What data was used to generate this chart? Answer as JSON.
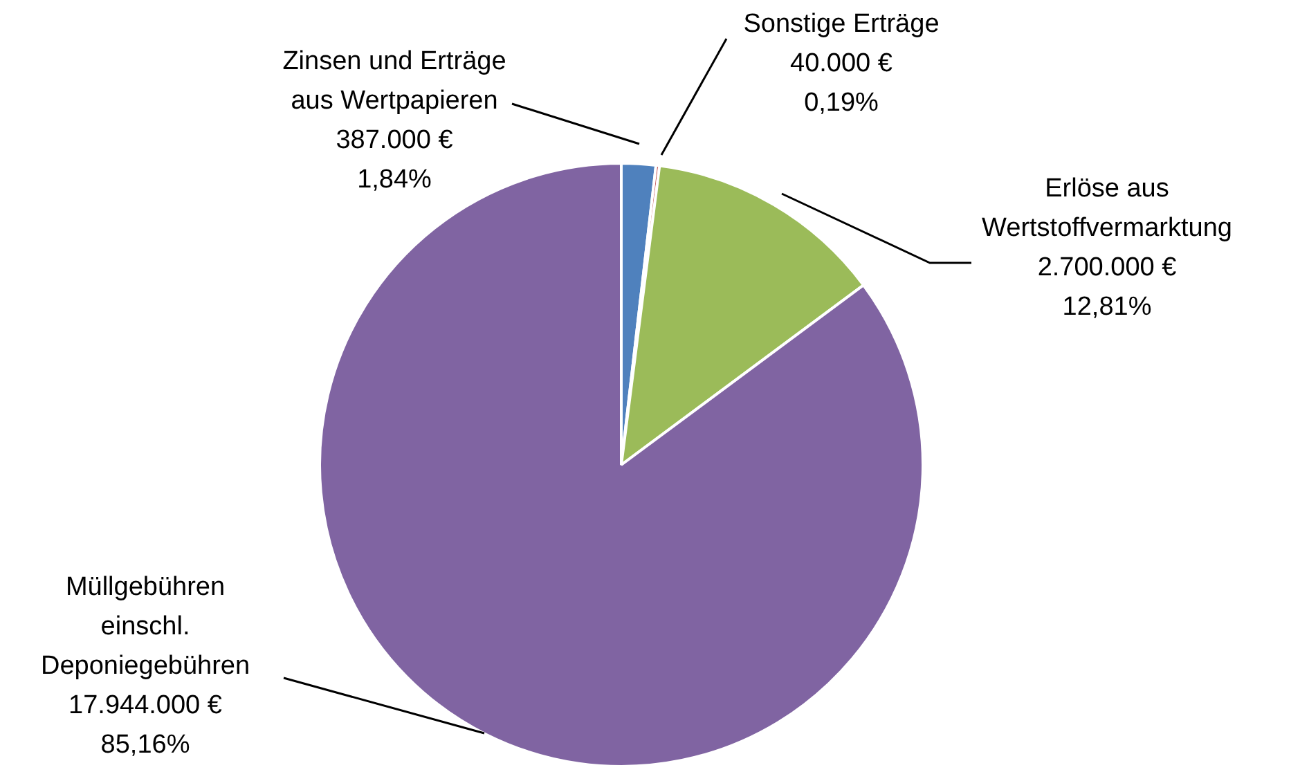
{
  "chart_data": {
    "type": "pie",
    "categories": [
      "Zinsen und Erträge aus Wertpapieren",
      "Sonstige Erträge",
      "Erlöse aus Wertstoffvermarktung",
      "Müllgebühren einschl. Deponiegebühren"
    ],
    "values": [
      387000,
      40000,
      2700000,
      17944000
    ],
    "colors": [
      "#4f81bd",
      "#c0504d",
      "#9bbb59",
      "#8064a2"
    ],
    "value_labels": [
      "387.000 €\n1,84%",
      "40.000 €\n0,19%",
      "2.700.000 €\n12,81%",
      "17.944.000 €\n85,16%"
    ],
    "legend": false
  }
}
